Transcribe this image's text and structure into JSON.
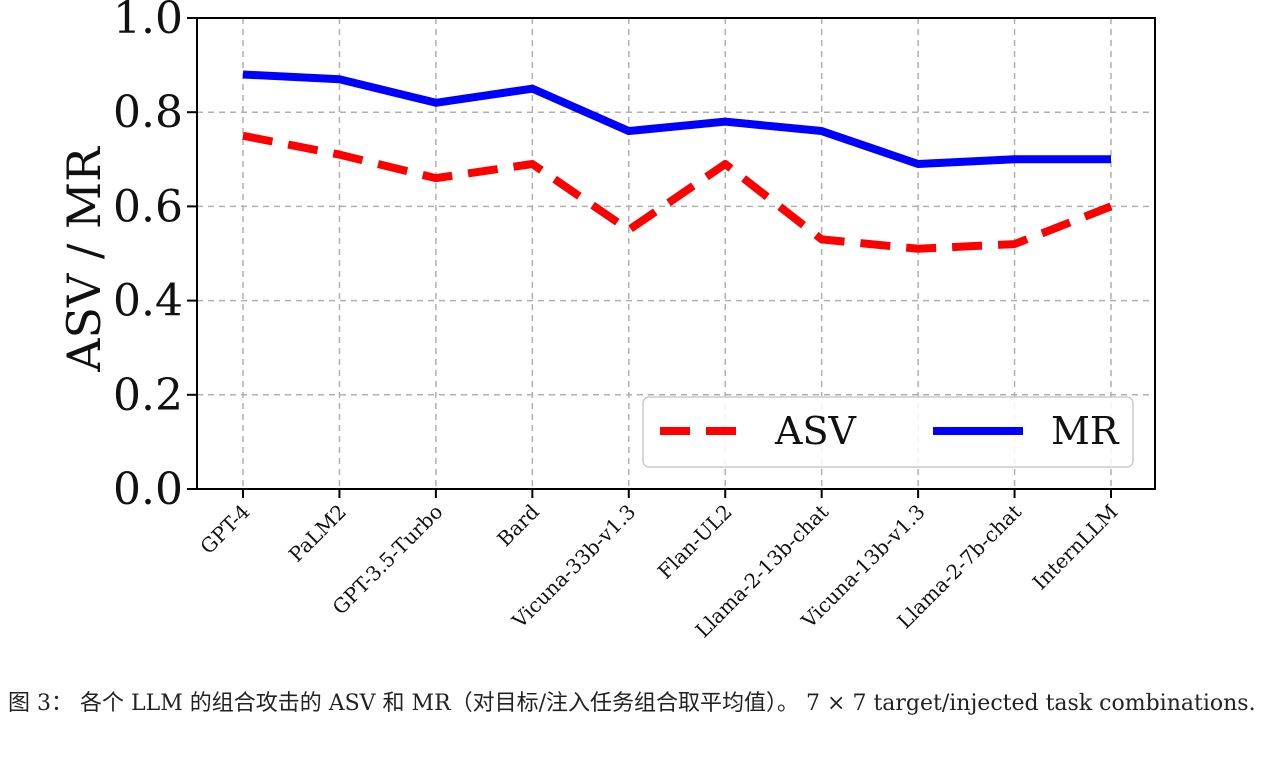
{
  "chart_data": {
    "type": "line",
    "categories": [
      "GPT-4",
      "PaLM2",
      "GPT-3.5-Turbo",
      "Bard",
      "Vicuna-33b-v1.3",
      "Flan-UL2",
      "Llama-2-13b-chat",
      "Vicuna-13b-v1.3",
      "Llama-2-7b-chat",
      "InternLLM"
    ],
    "series": [
      {
        "name": "ASV",
        "values": [
          0.75,
          0.71,
          0.66,
          0.69,
          0.55,
          0.69,
          0.53,
          0.51,
          0.52,
          0.6
        ],
        "color": "#ff0000",
        "style": "dashed"
      },
      {
        "name": "MR",
        "values": [
          0.88,
          0.87,
          0.82,
          0.85,
          0.76,
          0.78,
          0.76,
          0.69,
          0.7,
          0.7
        ],
        "color": "#0000ff",
        "style": "solid"
      }
    ],
    "ylabel": "ASV / MR",
    "xlabel": "",
    "ylim": [
      0.0,
      1.0
    ],
    "yticks": [
      "0.0",
      "0.2",
      "0.4",
      "0.6",
      "0.8",
      "1.0"
    ],
    "grid": true,
    "legend": "lower-right"
  },
  "caption": "图 3： 各个 LLM 的组合攻击的 ASV 和 MR（对目标/注入任务组合取平均值）。 7 × 7 target/injected task combinations."
}
